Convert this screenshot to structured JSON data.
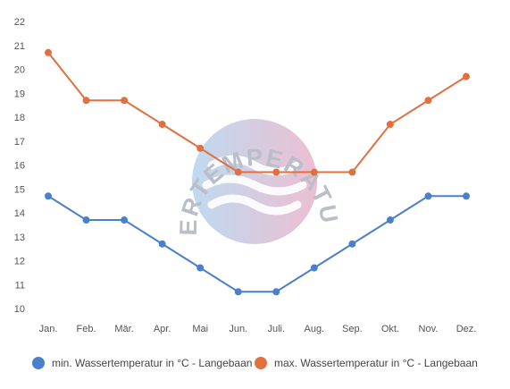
{
  "chart_data": {
    "type": "line",
    "categories": [
      "Jan.",
      "Feb.",
      "Mär.",
      "Apr.",
      "Mai",
      "Jun.",
      "Juli.",
      "Aug.",
      "Sep.",
      "Okt.",
      "Nov.",
      "Dez."
    ],
    "series": [
      {
        "name": "min. Wassertemperatur in °C - Langebaan",
        "values": [
          14.7,
          13.7,
          13.7,
          12.7,
          11.7,
          10.7,
          10.7,
          11.7,
          12.7,
          13.7,
          14.7,
          14.7
        ],
        "color": "#4a7fcc"
      },
      {
        "name": "max. Wassertemperatur in °C - Langebaan",
        "values": [
          20.7,
          18.7,
          18.7,
          17.7,
          16.7,
          15.7,
          15.7,
          15.7,
          15.7,
          17.7,
          18.7,
          19.7
        ],
        "color": "#e0703f"
      }
    ],
    "yticks": [
      "10",
      "11",
      "12",
      "13",
      "14",
      "15",
      "16",
      "17",
      "18",
      "19",
      "20",
      "21",
      "22"
    ],
    "ylim": [
      10,
      22
    ],
    "grid": false,
    "legend_position": "bottom"
  },
  "watermark": {
    "text": "WASSERTEMPERATUR.ORG"
  }
}
